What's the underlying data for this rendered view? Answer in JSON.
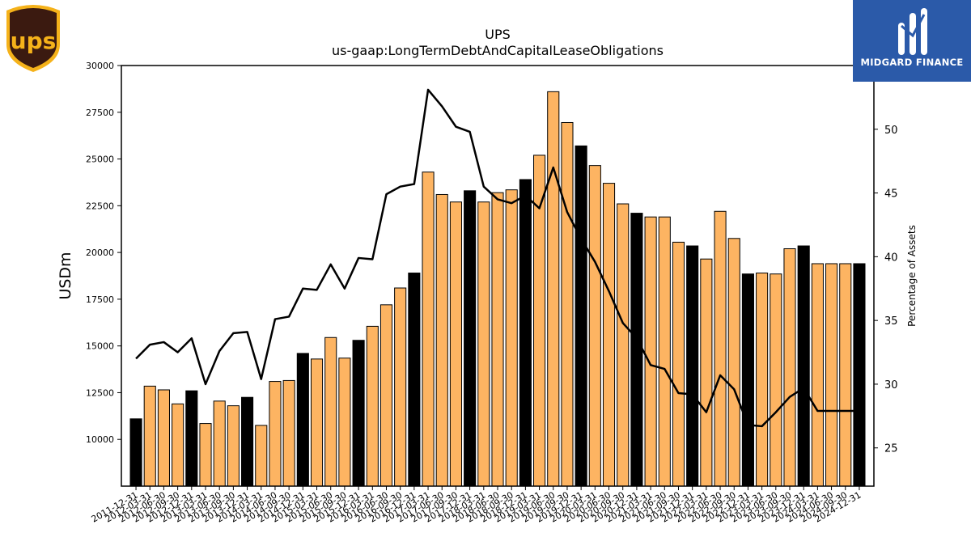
{
  "logos": {
    "left_logo_text": "ups",
    "right_logo_text": "MIDGARD FINANCE"
  },
  "colors": {
    "bar_highlight": "#000000",
    "bar_default": "#FDB462",
    "line": "#000000",
    "ups_shield": "#3b1a10",
    "ups_gold": "#f5b21a",
    "brand_bg": "#2b5aa9"
  },
  "chart_data": {
    "type": "bar",
    "title": "UPS",
    "subtitle": "us-gaap:LongTermDebtAndCapitalLeaseObligations",
    "ylabel": "USDm",
    "y2label": "Percentage of Assets",
    "ylim": [
      7500,
      30000
    ],
    "y2lim": [
      22,
      55
    ],
    "yticks": [
      10000,
      12500,
      15000,
      17500,
      20000,
      22500,
      25000,
      27500,
      30000
    ],
    "y2ticks": [
      25,
      30,
      35,
      40,
      45,
      50
    ],
    "categories": [
      "2011-12-31",
      "2012-03-31",
      "2012-06-30",
      "2012-09-30",
      "2012-12-31",
      "2013-03-31",
      "2013-06-30",
      "2013-09-30",
      "2013-12-31",
      "2014-03-31",
      "2014-06-30",
      "2014-09-30",
      "2014-12-31",
      "2015-03-31",
      "2015-06-30",
      "2015-09-30",
      "2015-12-31",
      "2016-03-31",
      "2016-06-30",
      "2016-09-30",
      "2016-12-31",
      "2017-03-31",
      "2017-06-30",
      "2017-09-30",
      "2017-12-31",
      "2018-03-31",
      "2018-06-30",
      "2018-09-30",
      "2018-12-31",
      "2019-03-31",
      "2019-06-30",
      "2019-09-30",
      "2019-12-31",
      "2020-03-31",
      "2020-06-30",
      "2020-09-30",
      "2020-12-31",
      "2021-03-31",
      "2021-06-30",
      "2021-09-30",
      "2021-12-31",
      "2022-03-31",
      "2022-06-30",
      "2022-09-30",
      "2022-12-31",
      "2023-03-31",
      "2023-06-30",
      "2023-09-30",
      "2023-12-31",
      "2024-03-31",
      "2024-06-30",
      "2024-09-30",
      "2024-12-31"
    ],
    "tick_labels": [
      "2011-12-31",
      "2012-03-31",
      "2012-06-30",
      "2012-09-30",
      "2012-12-31",
      "2013-03-31",
      "2013-06-30",
      "2013-09-30",
      "2013-12-31",
      "2014-03-31",
      "2014-06-30",
      "2014-09-30",
      "2014-12-31",
      "2015-03-31",
      "2015-06-30",
      "2015-09-30",
      "2015-12-31",
      "2016-03-31",
      "2016-06-30",
      "2016-09-30",
      "2016-12-31",
      "2017-03-31",
      "2017-06-30",
      "2017-09-30",
      "2017-12-31",
      "2018-03-31",
      "2018-06-30",
      "2018-09-30",
      "2018-12-31",
      "2019-03-31",
      "2019-06-30",
      "2019-09-30",
      "2019-12-31",
      "2020-03-31",
      "2020-06-30",
      "2020-09-30",
      "2020-12-31",
      "2021-03-31",
      "2021-06-30",
      "2021-09-30",
      "2021-12-31",
      "2022-03-31",
      "2022-06-30",
      "2022-09-30",
      "2022-12-31",
      "2023-03-31",
      "2023-06-30",
      "2023-09-30",
      "2023-12-31",
      "2024-03-31",
      "2024-06-30",
      "2024-09-30",
      "2024-12-31"
    ],
    "series": [
      {
        "kind": "bar",
        "values": [
          11100,
          12850,
          12650,
          11900,
          12600,
          10850,
          12050,
          11800,
          12250,
          10750,
          13100,
          13150,
          14600,
          14300,
          15450,
          14350,
          15300,
          16050,
          17200,
          18100,
          18900,
          24300,
          23100,
          22700,
          23300,
          22700,
          23200,
          23350,
          23900,
          25200,
          28600,
          26950,
          25700,
          24650,
          23700,
          22600,
          22100,
          21900,
          21900,
          20550,
          20350,
          19650,
          22200,
          20750,
          18850,
          18900,
          18850,
          20200,
          20350,
          19400,
          19400,
          19400,
          19400
        ],
        "highlight_year_end": true
      },
      {
        "kind": "line",
        "axis": "right",
        "values": [
          32.0,
          33.1,
          33.3,
          32.5,
          33.6,
          30.0,
          32.6,
          34.0,
          34.1,
          30.4,
          35.1,
          35.3,
          37.5,
          37.4,
          39.4,
          37.5,
          39.9,
          39.8,
          44.9,
          45.5,
          45.7,
          53.1,
          51.8,
          50.2,
          49.8,
          45.5,
          44.5,
          44.2,
          44.8,
          43.8,
          47.0,
          43.5,
          41.4,
          39.6,
          37.3,
          34.8,
          33.6,
          31.5,
          31.2,
          29.3,
          29.2,
          27.8,
          30.7,
          29.6,
          26.8,
          26.7,
          27.8,
          29.0,
          29.7,
          27.9,
          27.9,
          27.9,
          27.9
        ]
      }
    ],
    "grid": false,
    "legend": "none"
  }
}
